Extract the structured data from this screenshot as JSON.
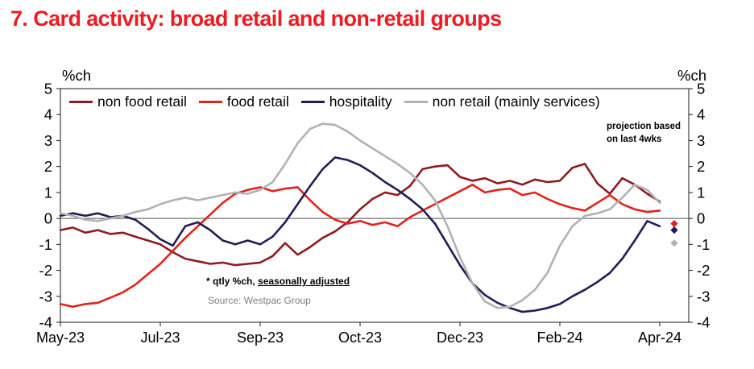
{
  "title": "7. Card activity: broad retail and non-retail groups",
  "axis_unit_left": "%ch",
  "axis_unit_right": "%ch",
  "annotations": {
    "projection": "projection based\non last 4wks",
    "footnote_prefix": "* qtly %ch, ",
    "footnote_underlined": "seasonally adjusted",
    "source": "Source: Westpac Group"
  },
  "chart_data": {
    "type": "line",
    "title": "Card activity: broad retail and non-retail groups",
    "unit": "%ch (quarterly % change, seasonally adjusted)",
    "x_ticks": [
      "May-23",
      "Jul-23",
      "Sep-23",
      "Oct-23",
      "Dec-23",
      "Feb-24",
      "Apr-24"
    ],
    "y_ticks": [
      5,
      4,
      3,
      2,
      1,
      0,
      -1,
      -2,
      -3,
      -4
    ],
    "ylim": [
      -4,
      5
    ],
    "zero_line": true,
    "legend_position": "top",
    "series": [
      {
        "name": "non food retail",
        "color": "#8e1b22",
        "values": [
          -0.45,
          -0.35,
          -0.55,
          -0.45,
          -0.6,
          -0.55,
          -0.7,
          -0.85,
          -1.0,
          -1.3,
          -1.55,
          -1.65,
          -1.75,
          -1.7,
          -1.8,
          -1.75,
          -1.7,
          -1.45,
          -0.95,
          -1.4,
          -1.1,
          -0.75,
          -0.5,
          -0.15,
          0.35,
          0.75,
          1.0,
          0.9,
          1.25,
          1.9,
          2.0,
          2.05,
          1.6,
          1.45,
          1.55,
          1.35,
          1.45,
          1.3,
          1.5,
          1.4,
          1.45,
          1.95,
          2.1,
          1.35,
          0.95,
          1.55,
          1.3,
          0.95,
          0.65
        ]
      },
      {
        "name": "food retail",
        "color": "#e2231a",
        "values": [
          -3.3,
          -3.4,
          -3.3,
          -3.25,
          -3.05,
          -2.85,
          -2.55,
          -2.15,
          -1.75,
          -1.25,
          -0.75,
          -0.3,
          0.15,
          0.6,
          0.95,
          1.1,
          1.2,
          1.05,
          1.15,
          1.2,
          0.7,
          0.25,
          -0.05,
          -0.2,
          -0.1,
          -0.25,
          -0.15,
          -0.3,
          0.05,
          0.3,
          0.55,
          0.8,
          1.05,
          1.3,
          1.0,
          1.1,
          1.15,
          0.9,
          1.0,
          0.75,
          0.55,
          0.4,
          0.3,
          0.6,
          0.9,
          0.55,
          0.35,
          0.25,
          0.3
        ]
      },
      {
        "name": "hospitality",
        "color": "#211d54",
        "values": [
          0.1,
          0.2,
          0.1,
          0.2,
          0.05,
          0.1,
          -0.05,
          -0.4,
          -0.8,
          -1.05,
          -0.3,
          -0.15,
          -0.45,
          -0.85,
          -1.0,
          -0.85,
          -1.0,
          -0.7,
          -0.15,
          0.55,
          1.25,
          1.9,
          2.35,
          2.25,
          2.05,
          1.75,
          1.4,
          1.1,
          0.75,
          0.35,
          -0.2,
          -1.0,
          -1.8,
          -2.5,
          -2.95,
          -3.25,
          -3.45,
          -3.6,
          -3.55,
          -3.45,
          -3.3,
          -3.0,
          -2.75,
          -2.45,
          -2.1,
          -1.55,
          -0.85,
          -0.1,
          -0.3
        ]
      },
      {
        "name": "non retail (mainly services)",
        "color": "#b2b2b4",
        "values": [
          0.2,
          0.1,
          -0.05,
          -0.1,
          0.0,
          0.1,
          0.25,
          0.35,
          0.55,
          0.7,
          0.8,
          0.7,
          0.8,
          0.9,
          1.0,
          0.95,
          1.1,
          1.4,
          2.1,
          2.9,
          3.45,
          3.65,
          3.6,
          3.35,
          3.0,
          2.7,
          2.4,
          2.1,
          1.75,
          1.3,
          0.7,
          -0.3,
          -1.5,
          -2.5,
          -3.2,
          -3.45,
          -3.4,
          -3.15,
          -2.75,
          -2.1,
          -1.05,
          -0.3,
          0.1,
          0.2,
          0.35,
          0.8,
          1.3,
          1.1,
          0.6
        ]
      }
    ],
    "projections": [
      {
        "series": "food retail",
        "color": "#e2231a",
        "value": -0.2
      },
      {
        "series": "hospitality",
        "color": "#211d54",
        "value": -0.45
      },
      {
        "series": "non retail (mainly services)",
        "color": "#b2b2b4",
        "value": -0.95
      }
    ]
  }
}
